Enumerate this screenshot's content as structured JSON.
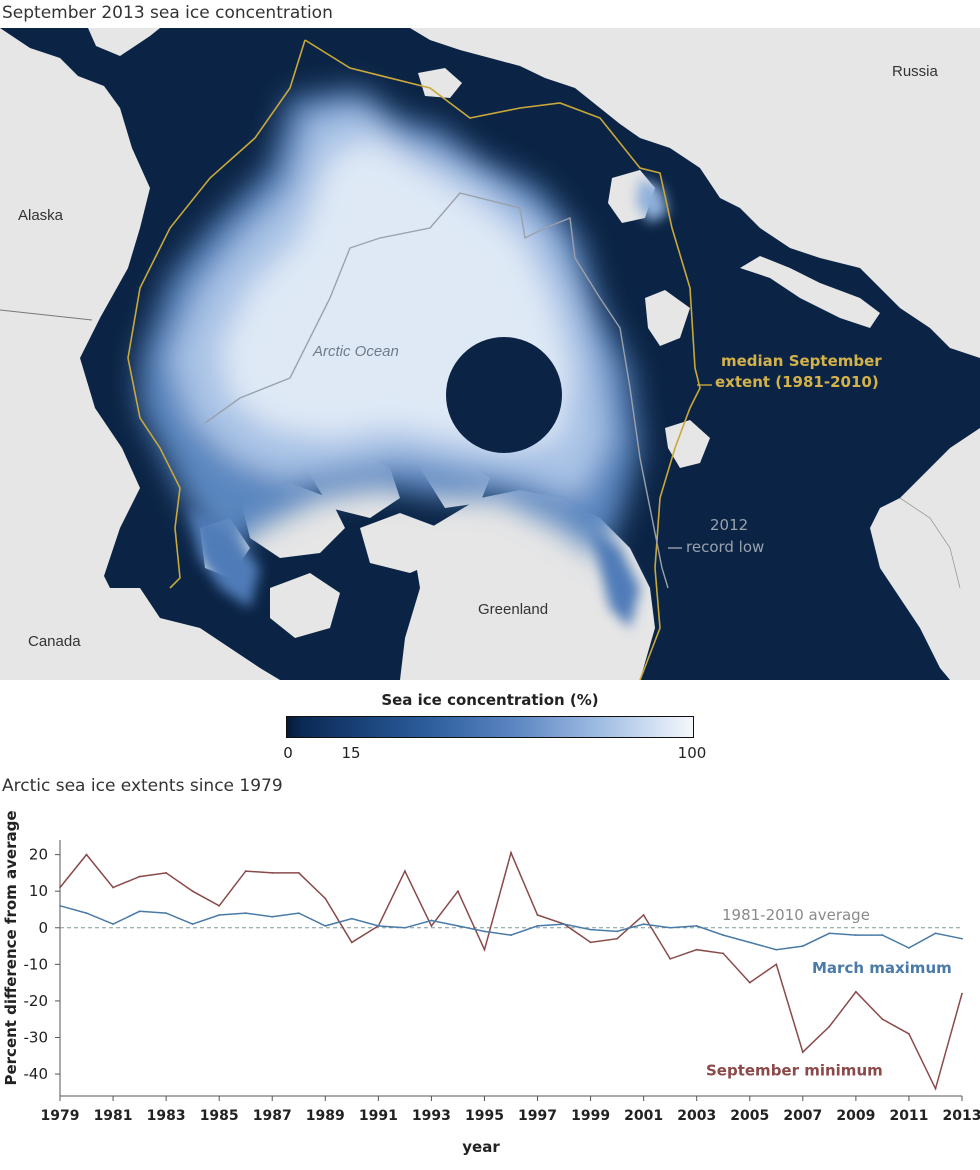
{
  "map": {
    "title": "September 2013 sea ice concentration",
    "labels": {
      "russia": "Russia",
      "alaska": "Alaska",
      "canada": "Canada",
      "greenland": "Greenland",
      "arctic_ocean": "Arctic Ocean",
      "median_line1": "median September",
      "median_line2": "extent (1981-2010)",
      "record_line1": "2012",
      "record_line2": "record low"
    },
    "colors": {
      "ocean": "#0b2445",
      "land": "#e6e6e6",
      "median_extent": "#c8a83a",
      "record_low": "#9aa1ad",
      "ice_high": "#eef3fa"
    }
  },
  "legend": {
    "title": "Sea ice concentration (%)",
    "ticks": [
      "0",
      "15",
      "100"
    ]
  },
  "chart_data": {
    "type": "line",
    "title": "Arctic sea ice extents since 1979",
    "xlabel": "year",
    "ylabel": "Percent difference from average",
    "ylim": [
      -46,
      24
    ],
    "xlim": [
      1979,
      2013
    ],
    "yticks": [
      20,
      10,
      0,
      -10,
      -20,
      -30,
      -40
    ],
    "ytick_labels": [
      "20",
      "10",
      "0",
      "-10",
      "-20",
      "-30",
      "-40"
    ],
    "xtick_labels": [
      "1979",
      "1981",
      "1983",
      "1985",
      "1987",
      "1989",
      "1991",
      "1993",
      "1995",
      "1997",
      "1999",
      "2001",
      "2003",
      "2005",
      "2007",
      "2009",
      "2011",
      "2013"
    ],
    "x": [
      1979,
      1980,
      1981,
      1982,
      1983,
      1984,
      1985,
      1986,
      1987,
      1988,
      1989,
      1990,
      1991,
      1992,
      1993,
      1994,
      1995,
      1996,
      1997,
      1998,
      1999,
      2000,
      2001,
      2002,
      2003,
      2004,
      2005,
      2006,
      2007,
      2008,
      2009,
      2010,
      2011,
      2012,
      2013
    ],
    "series": [
      {
        "name": "September minimum",
        "color": "#8a4a4a",
        "values": [
          11,
          20,
          11,
          14,
          15,
          10,
          6,
          15.5,
          15,
          15,
          8,
          -4,
          0.5,
          15.5,
          0.5,
          10,
          -6,
          20.5,
          3.5,
          1,
          -4,
          -3,
          3.5,
          -8.5,
          -6,
          -7,
          -15,
          -10,
          -34,
          -27,
          -17.5,
          -25,
          -29,
          -44,
          -18
        ]
      },
      {
        "name": "March maximum",
        "color": "#4a7aa8",
        "values": [
          6,
          4,
          1,
          4.5,
          4,
          1,
          3.5,
          4,
          3,
          4,
          0.5,
          2.5,
          0.5,
          0,
          2,
          0.5,
          -1,
          -2,
          0.5,
          1,
          -0.5,
          -1,
          1,
          0,
          0.5,
          -2,
          -4,
          -6,
          -5,
          -1.5,
          -2,
          -2,
          -5.5,
          -1.5,
          -3
        ]
      }
    ],
    "reference_line": {
      "value": 0,
      "label": "1981-2010 average",
      "color": "#7d9a9a"
    },
    "series_labels": {
      "march": "March maximum",
      "september": "September minimum"
    },
    "grid": false,
    "legend": "inline labels"
  }
}
